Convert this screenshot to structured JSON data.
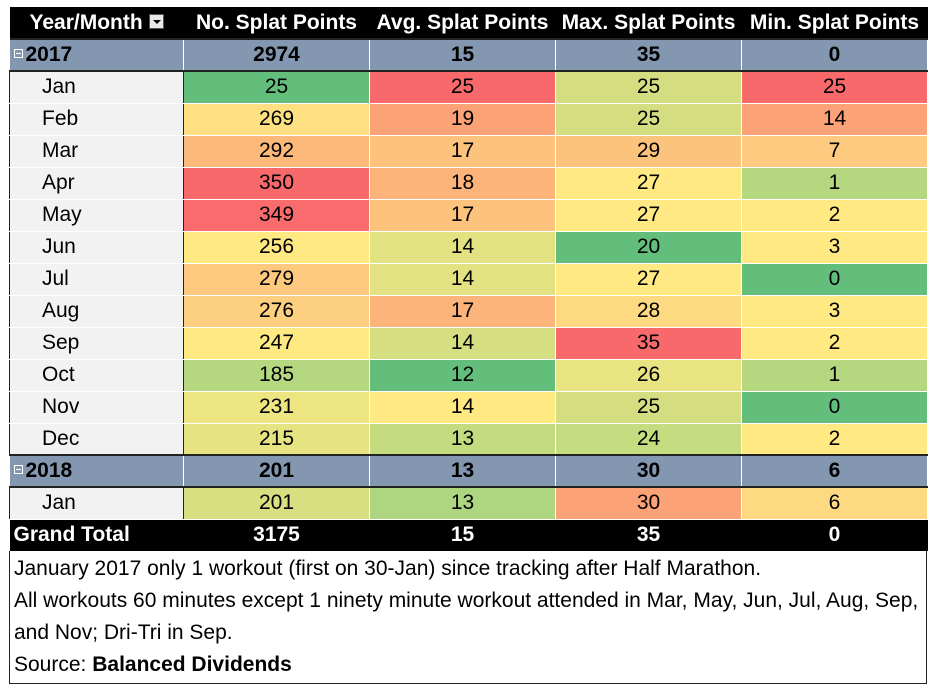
{
  "headers": [
    "Year/Month",
    "No. Splat Points",
    "Avg. Splat Points",
    "Max. Splat Points",
    "Min. Splat Points"
  ],
  "colors": {
    "red": "#f8696b",
    "orange": "#fbaa77",
    "light_orange": "#fcc47d",
    "yellow": "#fee983",
    "yellow_green": "#d7df81",
    "light_green": "#aed580",
    "green": "#63be7b",
    "year_row": "#8497b0",
    "label_cell": "#f2f2f2"
  },
  "groups": [
    {
      "year": "2017",
      "totals": [
        "2974",
        "15",
        "35",
        "0"
      ],
      "months": [
        {
          "label": "Jan",
          "values": [
            "25",
            "25",
            "25",
            "25"
          ],
          "colors": [
            "#63be7b",
            "#f8696b",
            "#d4de81",
            "#f8696b"
          ]
        },
        {
          "label": "Feb",
          "values": [
            "269",
            "19",
            "25",
            "14"
          ],
          "colors": [
            "#fee082",
            "#fba276",
            "#d4de81",
            "#fba276"
          ]
        },
        {
          "label": "Mar",
          "values": [
            "292",
            "17",
            "29",
            "7"
          ],
          "colors": [
            "#fcb97a",
            "#fdc37d",
            "#fcc37d",
            "#fdca7f"
          ]
        },
        {
          "label": "Apr",
          "values": [
            "350",
            "18",
            "27",
            "1"
          ],
          "colors": [
            "#f8696b",
            "#fcb47a",
            "#fee983",
            "#b5d780"
          ]
        },
        {
          "label": "May",
          "values": [
            "349",
            "17",
            "27",
            "2"
          ],
          "colors": [
            "#f96b6c",
            "#fdc37d",
            "#fee983",
            "#fee983"
          ]
        },
        {
          "label": "Jun",
          "values": [
            "256",
            "14",
            "20",
            "3"
          ],
          "colors": [
            "#fee983",
            "#e2e282",
            "#63be7b",
            "#fee983"
          ]
        },
        {
          "label": "Jul",
          "values": [
            "279",
            "14",
            "27",
            "0"
          ],
          "colors": [
            "#fdc97e",
            "#e2e282",
            "#fee983",
            "#63be7b"
          ]
        },
        {
          "label": "Aug",
          "values": [
            "276",
            "17",
            "28",
            "3"
          ],
          "colors": [
            "#fdcf80",
            "#fcb47a",
            "#fdd981",
            "#fee983"
          ]
        },
        {
          "label": "Sep",
          "values": [
            "247",
            "14",
            "35",
            "2"
          ],
          "colors": [
            "#fee983",
            "#d5de81",
            "#f8696b",
            "#fee983"
          ]
        },
        {
          "label": "Oct",
          "values": [
            "185",
            "12",
            "26",
            "1"
          ],
          "colors": [
            "#b4d780",
            "#63be7b",
            "#e8e482",
            "#b5d780"
          ]
        },
        {
          "label": "Nov",
          "values": [
            "231",
            "14",
            "25",
            "0"
          ],
          "colors": [
            "#ece582",
            "#fee983",
            "#d4de81",
            "#63be7b"
          ]
        },
        {
          "label": "Dec",
          "values": [
            "215",
            "13",
            "24",
            "2"
          ],
          "colors": [
            "#e6e482",
            "#c4db80",
            "#c6dc80",
            "#fee983"
          ]
        }
      ]
    },
    {
      "year": "2018",
      "totals": [
        "201",
        "13",
        "30",
        "6"
      ],
      "months": [
        {
          "label": "Jan",
          "values": [
            "201",
            "13",
            "30",
            "6"
          ],
          "colors": [
            "#d7df81",
            "#aed580",
            "#fba276",
            "#fdd981"
          ]
        }
      ]
    }
  ],
  "grand_total": {
    "label": "Grand Total",
    "values": [
      "3175",
      "15",
      "35",
      "0"
    ]
  },
  "notes": {
    "line1": "January 2017 only 1 workout (first on 30-Jan) since tracking after Half Marathon.",
    "line2": "All workouts 60 minutes except 1 ninety minute workout attended in Mar, May, Jun, Jul, Aug, Sep, and Nov; Dri-Tri in Sep.",
    "source_label": "Source: ",
    "source_name": "Balanced Dividends"
  }
}
